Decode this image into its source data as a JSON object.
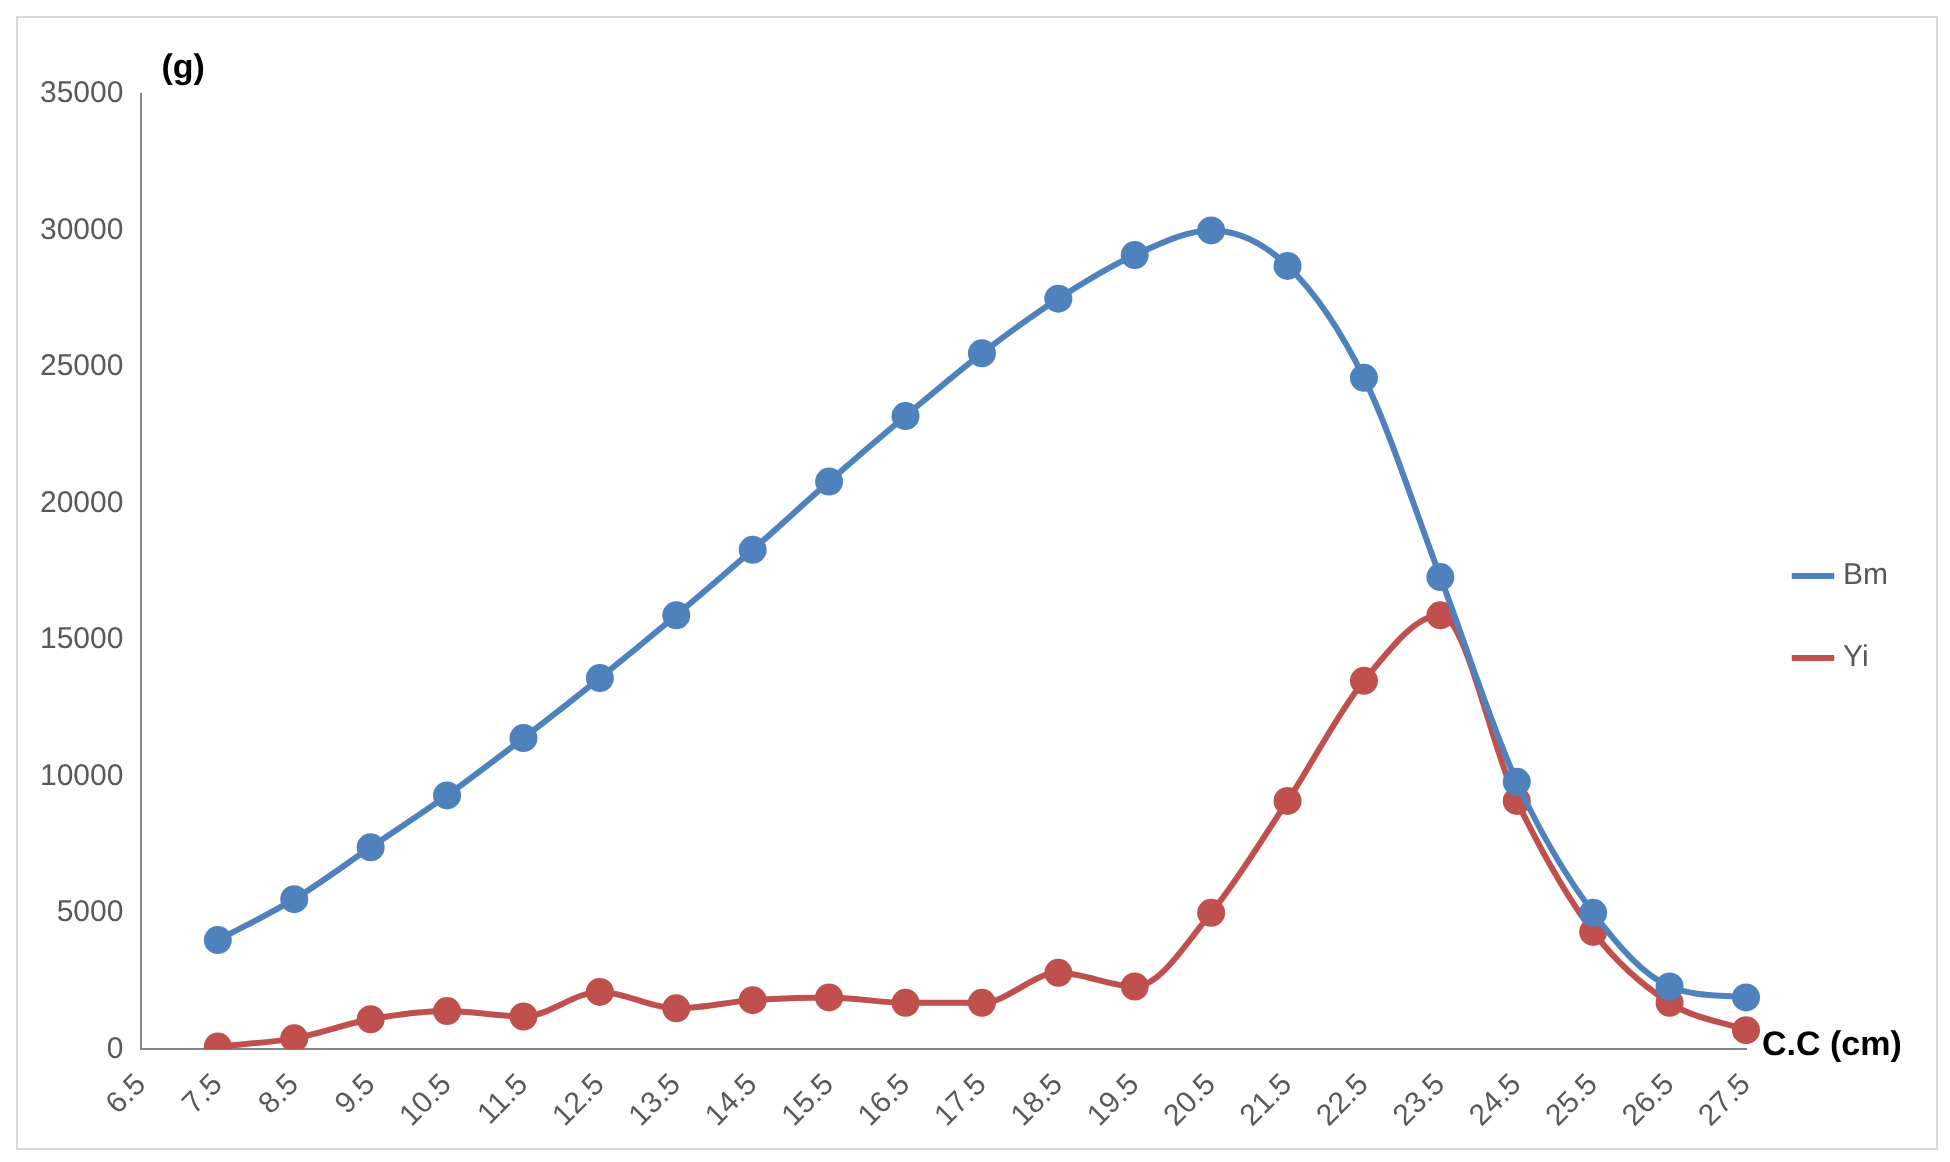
{
  "chart_data": {
    "type": "line",
    "xlabel": "C.C (cm)",
    "ylabel": "(g)",
    "categories": [
      "6.5",
      "7.5",
      "8.5",
      "9.5",
      "10.5",
      "11.5",
      "12.5",
      "13.5",
      "14.5",
      "15.5",
      "16.5",
      "17.5",
      "18.5",
      "19.5",
      "20.5",
      "21.5",
      "22.5",
      "23.5",
      "24.5",
      "25.5",
      "26.5",
      "27.5"
    ],
    "series": [
      {
        "name": "Bm",
        "color": "#4f81bd",
        "values": [
          null,
          4000,
          5500,
          7400,
          9300,
          11400,
          13600,
          15900,
          18300,
          20800,
          23200,
          25500,
          27500,
          29100,
          30000,
          28700,
          24600,
          17300,
          9800,
          5000,
          2300,
          1900
        ]
      },
      {
        "name": "Yi",
        "color": "#c0504d",
        "values": [
          null,
          100,
          400,
          1100,
          1400,
          1200,
          2100,
          1500,
          1800,
          1900,
          1700,
          1700,
          2800,
          2300,
          5000,
          9100,
          13500,
          15900,
          9100,
          4300,
          1700,
          700
        ]
      }
    ],
    "ylim": [
      0,
      35000
    ],
    "yticks": [
      0,
      5000,
      10000,
      15000,
      20000,
      25000,
      30000,
      35000
    ],
    "grid": false,
    "legend": "right",
    "marker": "circle",
    "line_style": "solid"
  }
}
